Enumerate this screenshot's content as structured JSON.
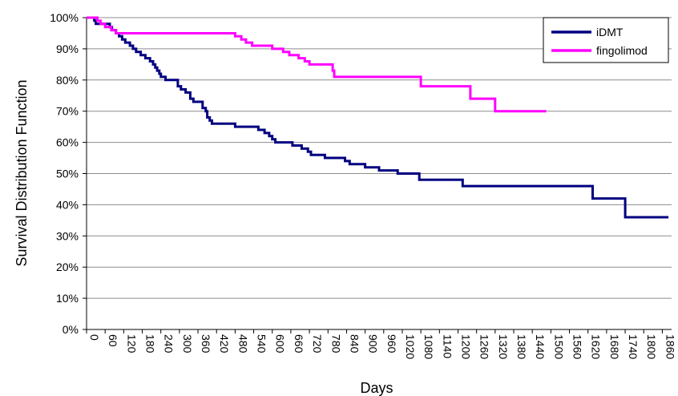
{
  "chart_data": {
    "type": "line",
    "step": true,
    "xlabel": "Days",
    "ylabel": "Survival Distribution Function",
    "xlim": [
      0,
      1890
    ],
    "ylim": [
      0,
      100
    ],
    "x_ticks": [
      "0",
      "60",
      "120",
      "180",
      "240",
      "300",
      "360",
      "420",
      "480",
      "540",
      "600",
      "660",
      "720",
      "780",
      "840",
      "900",
      "960",
      "1020",
      "1080",
      "1140",
      "1200",
      "1260",
      "1320",
      "1380",
      "1440",
      "1500",
      "1560",
      "1620",
      "1680",
      "1740",
      "1800",
      "1860"
    ],
    "y_ticks": [
      "0%",
      "10%",
      "20%",
      "30%",
      "40%",
      "50%",
      "60%",
      "70%",
      "80%",
      "90%",
      "100%"
    ],
    "grid": "horizontal",
    "legend_position": "top-right",
    "series": [
      {
        "name": "iDMT",
        "color": "#000080",
        "points": [
          [
            0,
            100
          ],
          [
            20,
            100
          ],
          [
            25,
            99
          ],
          [
            30,
            98
          ],
          [
            70,
            98
          ],
          [
            75,
            97
          ],
          [
            82,
            96
          ],
          [
            95,
            95
          ],
          [
            105,
            94
          ],
          [
            115,
            93
          ],
          [
            125,
            92
          ],
          [
            140,
            91
          ],
          [
            150,
            90
          ],
          [
            160,
            89
          ],
          [
            175,
            88
          ],
          [
            190,
            87
          ],
          [
            205,
            86
          ],
          [
            215,
            85
          ],
          [
            222,
            84
          ],
          [
            228,
            83
          ],
          [
            235,
            82
          ],
          [
            240,
            81
          ],
          [
            255,
            80
          ],
          [
            290,
            80
          ],
          [
            295,
            78
          ],
          [
            305,
            77
          ],
          [
            320,
            76
          ],
          [
            335,
            74
          ],
          [
            345,
            73
          ],
          [
            360,
            73
          ],
          [
            375,
            71
          ],
          [
            385,
            70
          ],
          [
            390,
            68
          ],
          [
            398,
            67
          ],
          [
            405,
            66
          ],
          [
            470,
            66
          ],
          [
            480,
            65
          ],
          [
            550,
            65
          ],
          [
            555,
            64
          ],
          [
            575,
            63
          ],
          [
            590,
            62
          ],
          [
            600,
            61
          ],
          [
            610,
            60
          ],
          [
            660,
            60
          ],
          [
            665,
            59
          ],
          [
            690,
            59
          ],
          [
            695,
            58
          ],
          [
            715,
            57
          ],
          [
            725,
            56
          ],
          [
            760,
            56
          ],
          [
            770,
            55
          ],
          [
            830,
            55
          ],
          [
            835,
            54
          ],
          [
            850,
            53
          ],
          [
            900,
            52
          ],
          [
            940,
            52
          ],
          [
            945,
            51
          ],
          [
            1000,
            51
          ],
          [
            1005,
            50
          ],
          [
            1070,
            50
          ],
          [
            1075,
            48
          ],
          [
            1210,
            48
          ],
          [
            1215,
            46
          ],
          [
            1630,
            46
          ],
          [
            1635,
            42
          ],
          [
            1735,
            42
          ],
          [
            1740,
            36
          ],
          [
            1880,
            36
          ]
        ]
      },
      {
        "name": "fingolimod",
        "color": "#ff00ff",
        "points": [
          [
            0,
            100
          ],
          [
            30,
            100
          ],
          [
            35,
            99
          ],
          [
            45,
            98
          ],
          [
            60,
            97
          ],
          [
            80,
            96
          ],
          [
            95,
            95
          ],
          [
            470,
            95
          ],
          [
            480,
            94
          ],
          [
            500,
            93
          ],
          [
            515,
            92
          ],
          [
            535,
            91
          ],
          [
            590,
            91
          ],
          [
            600,
            90
          ],
          [
            635,
            89
          ],
          [
            655,
            88
          ],
          [
            685,
            87
          ],
          [
            705,
            86
          ],
          [
            720,
            85
          ],
          [
            785,
            85
          ],
          [
            795,
            83
          ],
          [
            800,
            81
          ],
          [
            1075,
            81
          ],
          [
            1080,
            78
          ],
          [
            1230,
            78
          ],
          [
            1240,
            74
          ],
          [
            1310,
            74
          ],
          [
            1320,
            70
          ],
          [
            1485,
            70
          ]
        ]
      }
    ]
  }
}
